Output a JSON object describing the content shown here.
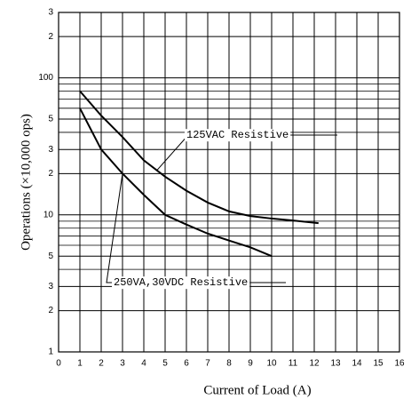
{
  "chart_data": {
    "type": "line",
    "x_label": "Current of Load (A)",
    "y_label": "Operations (×10,000 ops)",
    "xlim": [
      0,
      16
    ],
    "xticks": [
      0,
      1,
      2,
      3,
      4,
      5,
      6,
      7,
      8,
      9,
      10,
      11,
      12,
      13,
      14,
      15,
      16
    ],
    "ylim": [
      1,
      300
    ],
    "y_log": true,
    "grid": true,
    "minor_grid": true,
    "yticks": [
      1,
      2,
      3,
      5,
      10,
      {
        "value": 20,
        "label": "2"
      },
      {
        "value": 30,
        "label": "3"
      },
      {
        "value": 50,
        "label": "5"
      },
      100,
      {
        "value": 200,
        "label": "2"
      },
      {
        "value": 300,
        "label": "3"
      }
    ],
    "series": [
      {
        "name": "125VAC Resistive",
        "color": "#000000",
        "x": [
          1,
          2,
          3,
          4,
          5,
          6,
          7,
          8,
          9,
          10,
          11,
          12.2
        ],
        "values": [
          80,
          53,
          37,
          25,
          19,
          15,
          12.3,
          10.6,
          9.8,
          9.4,
          9.1,
          8.7
        ]
      },
      {
        "name": "250VA,30VDC Resistive",
        "color": "#000000",
        "x": [
          1,
          2,
          3,
          4,
          5,
          6,
          7,
          8,
          9,
          10
        ],
        "values": [
          60,
          30,
          20,
          14,
          10,
          8.5,
          7.3,
          6.5,
          5.8,
          5
        ]
      }
    ]
  }
}
